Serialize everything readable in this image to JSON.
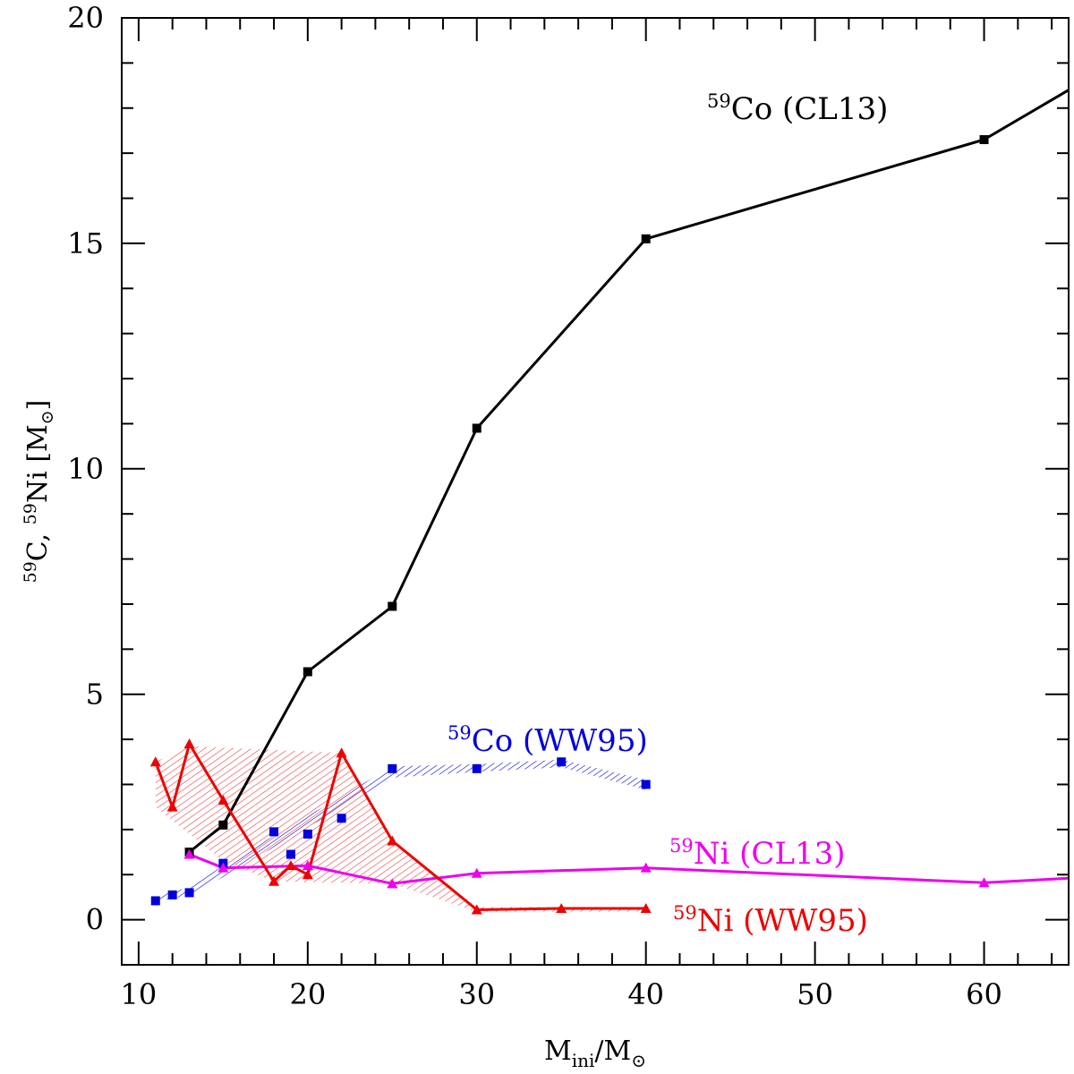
{
  "chart_data": {
    "type": "line",
    "title": "",
    "xlabel": {
      "main": "M",
      "sub": "ini",
      "tail": "/M",
      "sym": "⊙"
    },
    "ylabel": {
      "sup1": "59",
      "p1": "C,  ",
      "sup2": "59",
      "p2": "Ni  [M",
      "sym": "⊙",
      "p3": "]"
    },
    "xlim": [
      9,
      65
    ],
    "ylim": [
      -1,
      20
    ],
    "xticks": [
      10,
      20,
      30,
      40,
      50,
      60
    ],
    "yticks": [
      0,
      5,
      10,
      15,
      20
    ],
    "series": [
      {
        "name": "59Co (CL13)",
        "color": "#000000",
        "marker": "square",
        "line": true,
        "x": [
          13,
          15,
          20,
          25,
          30,
          40,
          60,
          65
        ],
        "y": [
          1.5,
          2.1,
          5.5,
          6.95,
          10.9,
          15.1,
          17.3,
          18.4
        ],
        "markers_count": 7,
        "label": {
          "sup": "59",
          "text": "Co (CL13)"
        }
      },
      {
        "name": "59Co (WW95)",
        "color": "#0000dd",
        "marker": "square",
        "line": false,
        "x": [
          11,
          12,
          13,
          15,
          18,
          19,
          20,
          22,
          25,
          30,
          35,
          40
        ],
        "y": [
          0.42,
          0.55,
          0.6,
          1.25,
          1.95,
          1.45,
          1.9,
          2.25,
          3.35,
          3.35,
          3.5,
          3.0
        ],
        "label": {
          "sup": "59",
          "text": "Co (WW95)"
        }
      },
      {
        "name": "59Ni (CL13)",
        "color": "#ee00ee",
        "marker": "triangle",
        "line": true,
        "x": [
          13,
          15,
          20,
          25,
          30,
          40,
          60,
          65
        ],
        "y": [
          1.45,
          1.15,
          1.2,
          0.8,
          1.03,
          1.15,
          0.82,
          0.92
        ],
        "markers_count": 7,
        "label": {
          "sup": "59",
          "text": "Ni (CL13)"
        }
      },
      {
        "name": "59Ni (WW95)",
        "color": "#ee0000",
        "marker": "triangle",
        "line": true,
        "x": [
          11,
          12,
          13,
          15,
          18,
          19,
          20,
          22,
          25,
          30,
          35,
          40
        ],
        "y": [
          3.5,
          2.5,
          3.9,
          2.65,
          0.85,
          1.2,
          1.0,
          3.7,
          1.75,
          0.22,
          0.25,
          0.25
        ],
        "label": {
          "sup": "59",
          "text": "Ni (WW95)"
        }
      }
    ],
    "bands": [
      {
        "name": "59Co (WW95) band",
        "color": "#0000dd",
        "upper": {
          "x": [
            11,
            12,
            13,
            15,
            25,
            30,
            35,
            40
          ],
          "y": [
            0.5,
            0.62,
            0.72,
            1.2,
            3.4,
            3.45,
            3.55,
            3.1
          ]
        },
        "lower": {
          "x": [
            11,
            12,
            13,
            15,
            25,
            30,
            35,
            40
          ],
          "y": [
            0.38,
            0.48,
            0.52,
            0.95,
            3.15,
            3.28,
            3.38,
            2.88
          ]
        }
      },
      {
        "name": "59Ni (WW95) band",
        "color": "#ee0000",
        "upper": {
          "x": [
            11,
            13,
            22,
            25,
            30,
            40
          ],
          "y": [
            3.5,
            3.85,
            3.7,
            1.75,
            0.28,
            0.28
          ]
        },
        "lower": {
          "x": [
            11,
            15,
            18,
            25,
            30,
            40
          ],
          "y": [
            2.5,
            1.3,
            0.85,
            0.8,
            0.18,
            0.18
          ]
        }
      }
    ]
  }
}
